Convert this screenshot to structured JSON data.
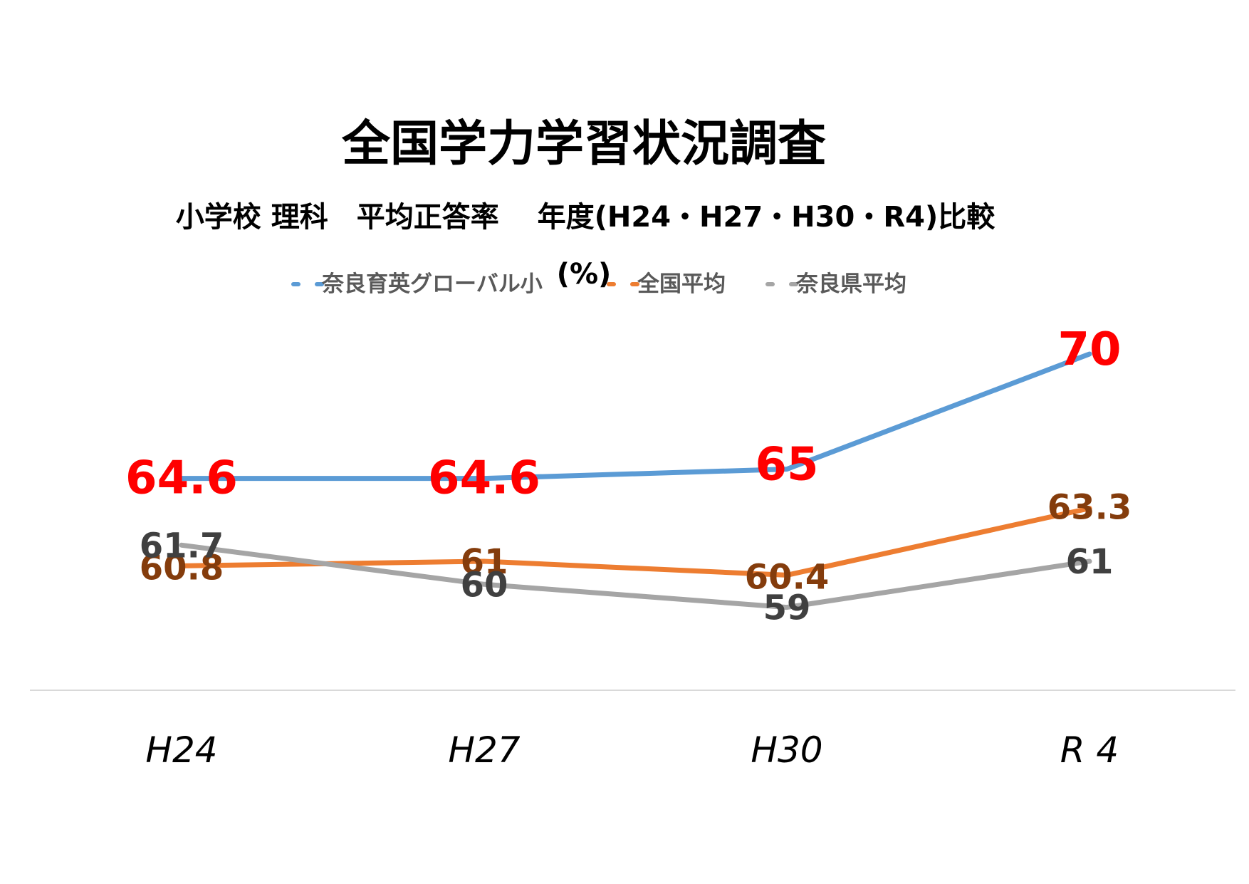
{
  "chart_data": {
    "type": "line",
    "title": "全国学力学習状況調査",
    "subtitle": "小学校 理科　平均正答率　 年度(H24・H27・H30・R4)比較",
    "unit_label": "(%)",
    "categories": [
      "H24",
      "H27",
      "H30",
      "R 4"
    ],
    "series": [
      {
        "name": "奈良育英グローバル小",
        "values": [
          64.6,
          64.6,
          65,
          70
        ],
        "labels": [
          "64.6",
          "64.6",
          "65",
          "70"
        ],
        "color": "#5b9bd5",
        "label_color": "#ff0000"
      },
      {
        "name": "全国平均",
        "values": [
          60.8,
          61,
          60.4,
          63.3
        ],
        "labels": [
          "60.8",
          "61",
          "60.4",
          "63.3"
        ],
        "color": "#ed7d31",
        "label_color": "#843c0c"
      },
      {
        "name": "奈良県平均",
        "values": [
          61.7,
          60,
          59,
          61
        ],
        "labels": [
          "61.7",
          "60",
          "59",
          "61"
        ],
        "color": "#a5a5a5",
        "label_color": "#404040"
      }
    ],
    "legend_position": "top",
    "grid": false,
    "ylim": [
      55.4,
      73
    ]
  }
}
